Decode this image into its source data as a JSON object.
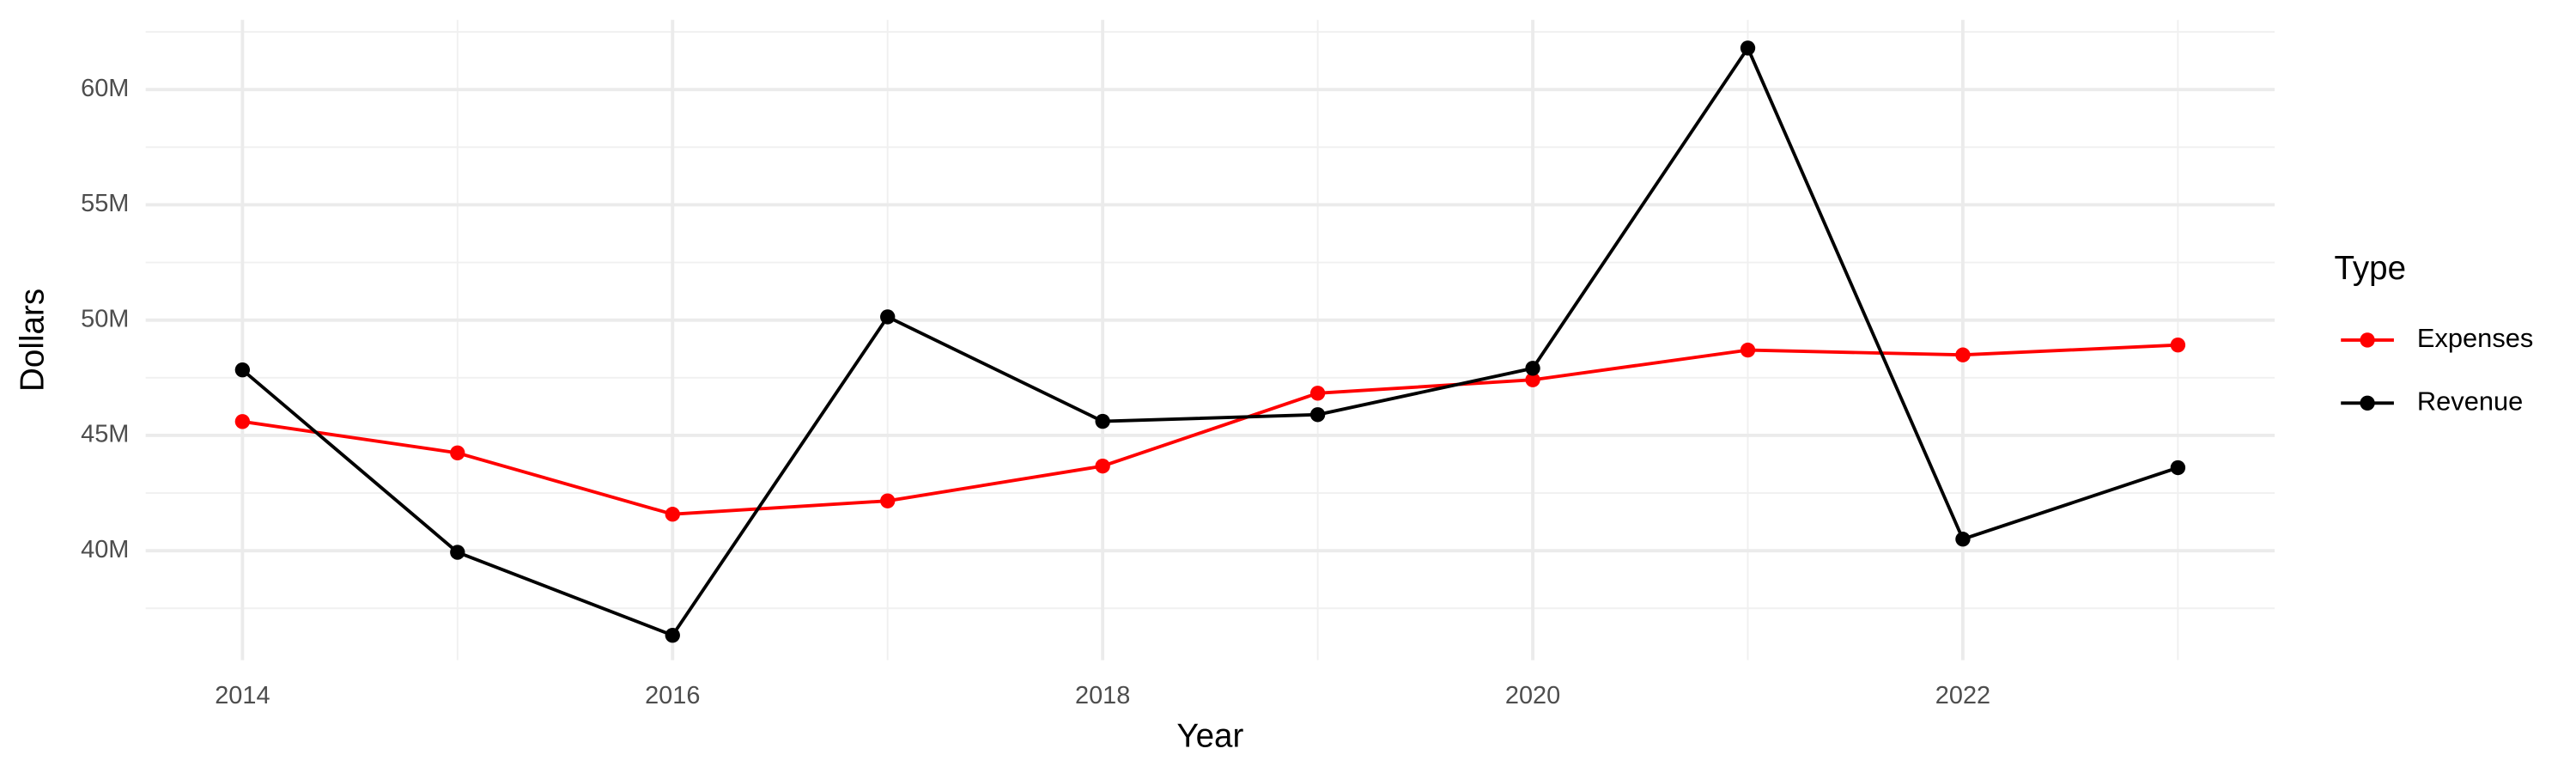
{
  "chart_data": {
    "type": "line",
    "x_label": "Year",
    "y_label": "Dollars",
    "x": [
      2014,
      2015,
      2016,
      2017,
      2018,
      2019,
      2020,
      2021,
      2022,
      2023
    ],
    "series": [
      {
        "name": "Expenses",
        "color": "#ff0000",
        "values": [
          45600000,
          44240000,
          41580000,
          42160000,
          43670000,
          46830000,
          47410000,
          48700000,
          48490000,
          48920000
        ]
      },
      {
        "name": "Revenue",
        "color": "#000000",
        "values": [
          47840000,
          39930000,
          36330000,
          50140000,
          45610000,
          45900000,
          47910000,
          61800000,
          40500000,
          43600000
        ]
      }
    ],
    "xlim": [
      2013.55,
      2023.45
    ],
    "xticks": [
      2014,
      2016,
      2018,
      2020,
      2022
    ],
    "ylim": [
      35250000,
      63020000
    ],
    "yticks": [
      {
        "value": 40000000,
        "label": "40M"
      },
      {
        "value": 45000000,
        "label": "45M"
      },
      {
        "value": 50000000,
        "label": "50M"
      },
      {
        "value": 55000000,
        "label": "55M"
      },
      {
        "value": 60000000,
        "label": "60M"
      }
    ],
    "grid": true,
    "legend_title": "Type",
    "legend_position": "right"
  }
}
